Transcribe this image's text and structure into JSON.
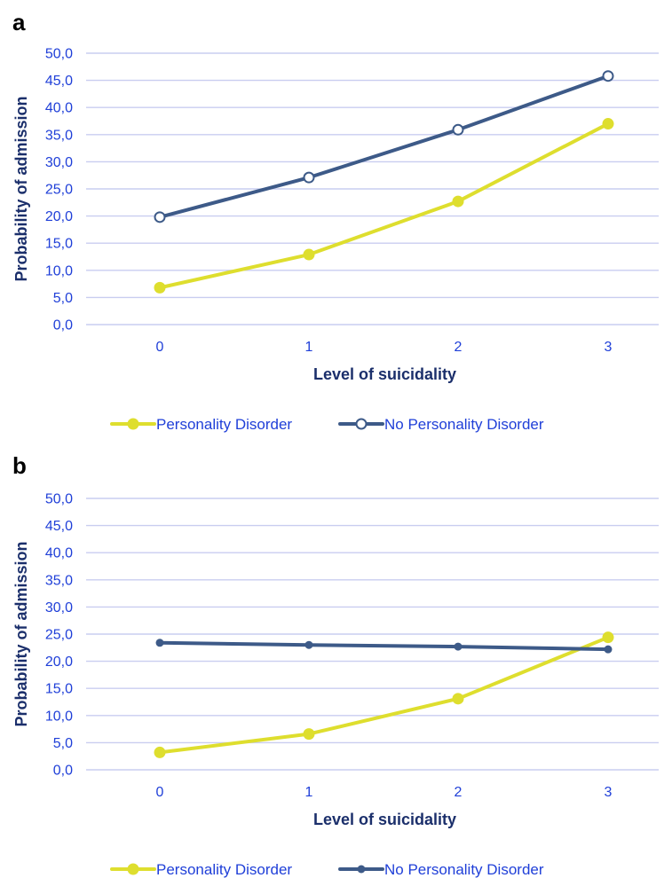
{
  "colors": {
    "pd": "#dede2e",
    "nopd": "#3d5a88",
    "tick": "#1f3fd8",
    "title": "#1b2f6b",
    "grid": "#c9cdf0"
  },
  "chart_data": [
    {
      "panel_label": "a",
      "type": "line",
      "categories": [
        "0",
        "1",
        "2",
        "3"
      ],
      "ylabel": "Probability of admission",
      "xlabel": "Level of suicidality",
      "ylim": [
        0,
        50
      ],
      "yticks": [
        "0,0",
        "5,0",
        "10,0",
        "15,0",
        "20,0",
        "25,0",
        "30,0",
        "35,0",
        "40,0",
        "45,0",
        "50,0"
      ],
      "grid": true,
      "legend_position": "bottom",
      "series": [
        {
          "name": "Personality Disorder",
          "values": [
            6.8,
            12.9,
            22.7,
            37.0
          ],
          "color": "#dede2e",
          "marker": "filled-circle"
        },
        {
          "name": "No Personality Disorder",
          "values": [
            19.8,
            27.1,
            35.9,
            45.8
          ],
          "color": "#3d5a88",
          "marker": "open-circle"
        }
      ]
    },
    {
      "panel_label": "b",
      "type": "line",
      "categories": [
        "0",
        "1",
        "2",
        "3"
      ],
      "ylabel": "Probability of admission",
      "xlabel": "Level of suicidality",
      "ylim": [
        0,
        50
      ],
      "yticks": [
        "0,0",
        "5,0",
        "10,0",
        "15,0",
        "20,0",
        "25,0",
        "30,0",
        "35,0",
        "40,0",
        "45,0",
        "50,0"
      ],
      "grid": true,
      "legend_position": "bottom",
      "series": [
        {
          "name": "Personality Disorder",
          "values": [
            3.2,
            6.6,
            13.1,
            24.4
          ],
          "color": "#dede2e",
          "marker": "filled-circle"
        },
        {
          "name": "No Personality Disorder",
          "values": [
            23.4,
            23.0,
            22.7,
            22.2
          ],
          "color": "#3d5a88",
          "marker": "small-dot"
        }
      ]
    }
  ]
}
